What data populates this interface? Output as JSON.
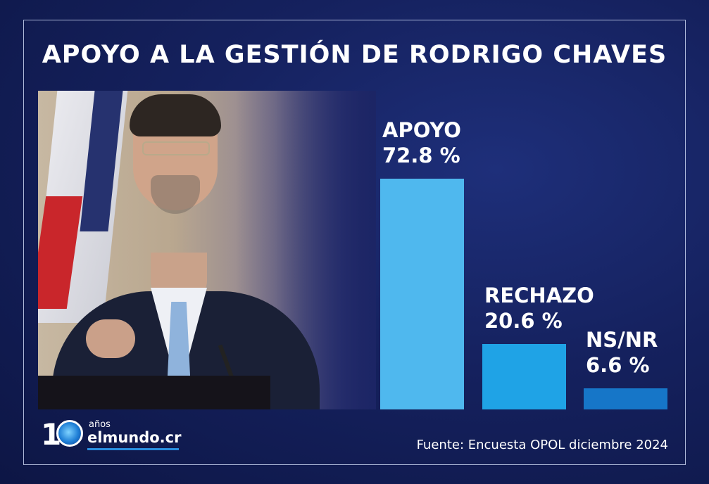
{
  "title": "APOYO A LA GESTIÓN DE RODRIGO CHAVES",
  "source": "Fuente: Encuesta OPOL diciembre 2024",
  "logo": {
    "number": "10",
    "anos": "años",
    "site": "elmundo.cr"
  },
  "colors": {
    "apoyo": "#4fb8ee",
    "rechazo": "#1fa3e6",
    "nsnr": "#1676c8",
    "background": "#15215e"
  },
  "chart_data": {
    "type": "bar",
    "title": "APOYO A LA GESTIÓN DE RODRIGO CHAVES",
    "categories": [
      "APOYO",
      "RECHAZO",
      "NS/NR"
    ],
    "values": [
      72.8,
      20.6,
      6.6
    ],
    "value_labels": [
      "72.8 %",
      "20.6 %",
      "6.6 %"
    ],
    "unit": "%",
    "ylim": [
      0,
      72.8
    ],
    "grid": false,
    "legend": "none"
  }
}
